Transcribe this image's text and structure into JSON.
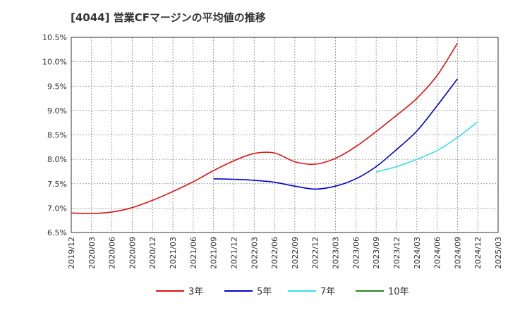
{
  "chart_data": {
    "type": "line",
    "title": "[4044]  営業CFマージンの平均値の推移",
    "xlabel": "",
    "ylabel": "",
    "ylim": [
      6.5,
      10.5
    ],
    "y_ticks": [
      {
        "v": 6.5,
        "label": "6.5%"
      },
      {
        "v": 7.0,
        "label": "7.0%"
      },
      {
        "v": 7.5,
        "label": "7.5%"
      },
      {
        "v": 8.0,
        "label": "8.0%"
      },
      {
        "v": 8.5,
        "label": "8.5%"
      },
      {
        "v": 9.0,
        "label": "9.0%"
      },
      {
        "v": 9.5,
        "label": "9.5%"
      },
      {
        "v": 10.0,
        "label": "10.0%"
      },
      {
        "v": 10.5,
        "label": "10.5%"
      }
    ],
    "x_ticks": [
      "2019/12",
      "2020/03",
      "2020/06",
      "2020/09",
      "2020/12",
      "2021/03",
      "2021/06",
      "2021/09",
      "2021/12",
      "2022/03",
      "2022/06",
      "2022/09",
      "2022/12",
      "2023/03",
      "2023/06",
      "2023/09",
      "2023/12",
      "2024/03",
      "2024/06",
      "2024/09",
      "2024/12",
      "2025/03"
    ],
    "grid": true,
    "legend_position": "bottom",
    "series": [
      {
        "name": "3年",
        "color": "#dd1111",
        "start": "2019/12",
        "values": [
          6.9,
          6.89,
          6.92,
          7.01,
          7.16,
          7.34,
          7.54,
          7.77,
          7.97,
          8.12,
          8.13,
          7.95,
          7.9,
          8.02,
          8.26,
          8.57,
          8.9,
          9.25,
          9.72,
          10.38
        ]
      },
      {
        "name": "5年",
        "color": "#0000cc",
        "start": "2021/09",
        "values": [
          7.6,
          7.59,
          7.57,
          7.53,
          7.45,
          7.39,
          7.45,
          7.6,
          7.85,
          8.2,
          8.58,
          9.1,
          9.65
        ]
      },
      {
        "name": "7年",
        "color": "#33e0e8",
        "start": "2023/09",
        "values": [
          7.74,
          7.85,
          8.0,
          8.18,
          8.45,
          8.77
        ]
      },
      {
        "name": "10年",
        "color": "#228822",
        "start": "",
        "values": []
      }
    ]
  }
}
